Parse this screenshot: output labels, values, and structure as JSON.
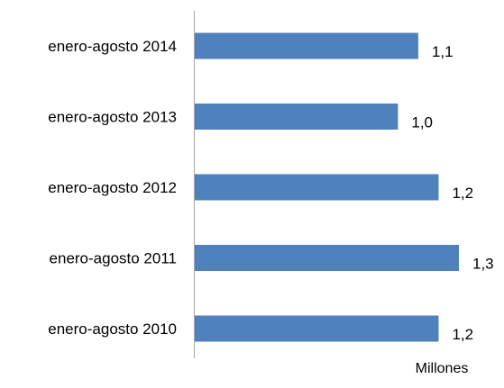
{
  "chart_data": {
    "type": "bar",
    "orientation": "horizontal",
    "categories": [
      "enero-agosto 2014",
      "enero-agosto 2013",
      "enero-agosto 2012",
      "enero-agosto 2011",
      "enero-agosto 2010"
    ],
    "values": [
      1.1,
      1.0,
      1.2,
      1.3,
      1.2
    ],
    "value_labels": [
      "1,1",
      "1,0",
      "1,2",
      "1,3",
      "1,2"
    ],
    "unit_label": "Millones",
    "xlim": [
      0,
      1.3
    ],
    "bar_color": "#4f81bd",
    "axis_color": "#a6a6a6",
    "grid": false,
    "legend": "none"
  }
}
